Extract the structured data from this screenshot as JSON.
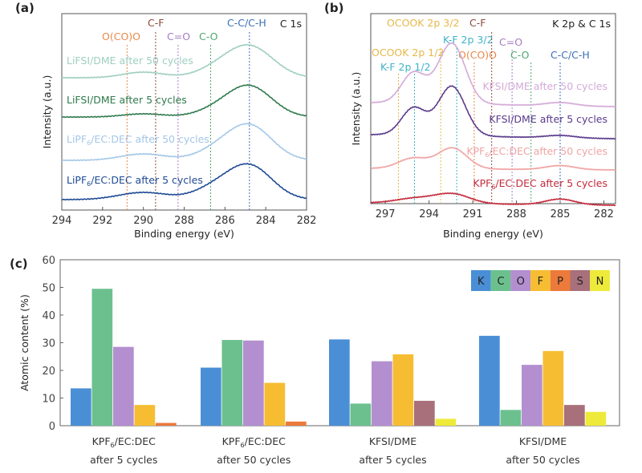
{
  "panel_a": {
    "label": "(a)",
    "core_level": "C 1s",
    "xlabel": "Binding energy (eV)",
    "ylabel": "Intensity (a.u.)",
    "xlim": [
      294,
      282
    ],
    "ticks": [
      "294",
      "292",
      "290",
      "288",
      "286",
      "284",
      "282"
    ],
    "annotations": [
      {
        "text": "O(CO)O",
        "energy": 290.8,
        "color": "#e8894a"
      },
      {
        "text": "C-F",
        "energy": 289.4,
        "color": "#8b4a3a"
      },
      {
        "text": "C=O",
        "energy": 288.3,
        "color": "#a67bc4"
      },
      {
        "text": "C-O",
        "energy": 286.7,
        "color": "#4aa86a"
      },
      {
        "text": "C-C/C-H",
        "energy": 284.8,
        "color": "#3a6fb8"
      }
    ],
    "series": [
      {
        "pre": "LiFSI/DME after 50 cycles",
        "sub": "",
        "post": "",
        "color": "#9fcfbf"
      },
      {
        "pre": "LiFSI/DME after 5 cycles",
        "sub": "",
        "post": "",
        "color": "#2e7a4c"
      },
      {
        "pre": "LiPF",
        "sub": "6",
        "post": "/EC:DEC after 50 cycles",
        "color": "#a3c7e8"
      },
      {
        "pre": "LiPF",
        "sub": "6",
        "post": "/EC:DEC after 5 cycles",
        "color": "#1f4a94"
      }
    ]
  },
  "panel_b": {
    "label": "(b)",
    "core_level": "K 2p & C 1s",
    "xlabel": "Binding energy (eV)",
    "ylabel": "Intensity (a.u.)",
    "xlim": [
      298,
      281.2
    ],
    "ticks": [
      "297",
      "294",
      "291",
      "288",
      "285",
      "282"
    ],
    "annotations": [
      {
        "text": "OCOOK 2p 1/2",
        "energy": 296.1,
        "color": "#e6b84a"
      },
      {
        "text": "K-F 2p 1/2",
        "energy": 295.0,
        "color": "#3fb3c9"
      },
      {
        "text": "OCOOK 2p 3/2",
        "energy": 293.2,
        "color": "#e6b84a"
      },
      {
        "text": "K-F 2p 3/2",
        "energy": 292.1,
        "color": "#3fb3c9"
      },
      {
        "text": "O(CO)O",
        "energy": 290.9,
        "color": "#e8894a"
      },
      {
        "text": "C-F",
        "energy": 289.7,
        "color": "#8b4a3a"
      },
      {
        "text": "C=O",
        "energy": 288.3,
        "color": "#a67bc4"
      },
      {
        "text": "C-O",
        "energy": 287.0,
        "color": "#4aa86a"
      },
      {
        "text": "C-C/C-H",
        "energy": 285.0,
        "color": "#3a6fb8"
      }
    ],
    "series": [
      {
        "pre": "KFSI/DME after 50 cycles",
        "sub": "",
        "post": "",
        "color": "#d4aad8"
      },
      {
        "pre": "KFSI/DME after 5 cycles",
        "sub": "",
        "post": "",
        "color": "#5a3a8c"
      },
      {
        "pre": "KPF",
        "sub": "6",
        "post": "/EC:DEC after 50 cycles",
        "color": "#f0a3a3"
      },
      {
        "pre": "KPF",
        "sub": "6",
        "post": "/EC:DEC after 5 cycles",
        "color": "#c42a3c"
      }
    ]
  },
  "chart_data": {
    "type": "bar",
    "label": "(c)",
    "ylabel": "Atomic content (%)",
    "ylim": [
      0,
      60
    ],
    "yticks": [
      "0",
      "10",
      "20",
      "30",
      "40",
      "50",
      "60"
    ],
    "legend_position": "top-right",
    "elements": [
      {
        "name": "K",
        "color": "#4a8fd6"
      },
      {
        "name": "C",
        "color": "#6cc08e"
      },
      {
        "name": "O",
        "color": "#b38fd0"
      },
      {
        "name": "F",
        "color": "#f6bd33"
      },
      {
        "name": "P",
        "color": "#ec7a3a"
      },
      {
        "name": "S",
        "color": "#a8707a"
      },
      {
        "name": "N",
        "color": "#eeea3a"
      }
    ],
    "categories": [
      {
        "pre": "KPF",
        "sub": "6",
        "post": "/EC:DEC",
        "line2": "after 5 cycles",
        "values": {
          "K": 13.5,
          "C": 49.5,
          "O": 28.5,
          "F": 7.5,
          "P": 1.0
        }
      },
      {
        "pre": "KPF",
        "sub": "6",
        "post": "/EC:DEC",
        "line2": "after 50 cycles",
        "values": {
          "K": 21.0,
          "C": 31.0,
          "O": 30.8,
          "F": 15.5,
          "P": 1.5
        }
      },
      {
        "pre": "KFSI/DME",
        "sub": "",
        "post": "",
        "line2": "after 5 cycles",
        "values": {
          "K": 31.2,
          "C": 8.0,
          "O": 23.3,
          "F": 25.8,
          "S": 9.0,
          "N": 2.5
        }
      },
      {
        "pre": "KFSI/DME",
        "sub": "",
        "post": "",
        "line2": "after 50 cycles",
        "values": {
          "K": 32.5,
          "C": 5.7,
          "O": 22.0,
          "F": 27.0,
          "S": 7.5,
          "N": 5.0
        }
      }
    ]
  }
}
